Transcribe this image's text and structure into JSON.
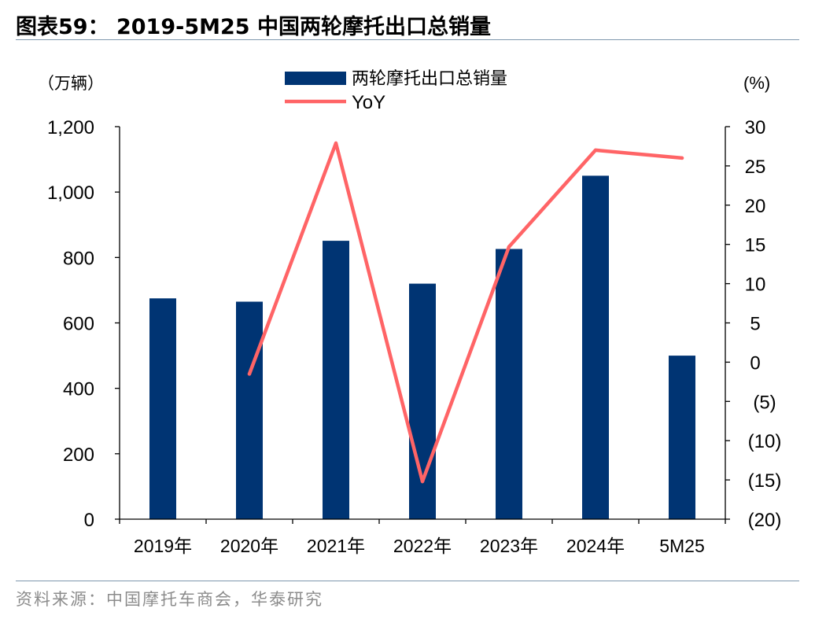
{
  "header": {
    "title": "图表59：  2019-5M25 中国两轮摩托出口总销量"
  },
  "footer": {
    "source": "资料来源：中国摩托车商会，华泰研究"
  },
  "colors": {
    "bar": "#003473",
    "line": "#ff6466",
    "rule": "#7f98ad",
    "source": "#8c8c8c"
  },
  "chart_data": {
    "type": "bar+line",
    "categories": [
      "2019年",
      "2020年",
      "2021年",
      "2022年",
      "2023年",
      "2024年",
      "5M25"
    ],
    "series": [
      {
        "name": "两轮摩托出口总销量",
        "type": "bar",
        "axis": "left",
        "values": [
          675,
          665,
          851,
          720,
          826,
          1050,
          500
        ]
      },
      {
        "name": "YoY",
        "type": "line",
        "axis": "right",
        "values": [
          null,
          -1.5,
          27.9,
          -15.2,
          14.7,
          27.0,
          26.0
        ]
      }
    ],
    "y_left": {
      "unit": "（万辆）",
      "min": 0,
      "max": 1200,
      "ticks": [
        0,
        200,
        400,
        600,
        800,
        1000,
        1200
      ],
      "tick_labels": [
        "0",
        "200",
        "400",
        "600",
        "800",
        "1,000",
        "1,200"
      ]
    },
    "y_right": {
      "unit": "(%)",
      "min": -20,
      "max": 30,
      "ticks": [
        -20,
        -15,
        -10,
        -5,
        0,
        5,
        10,
        15,
        20,
        25,
        30
      ],
      "tick_labels": [
        "(20)",
        "(15)",
        "(10)",
        "(5)",
        "0",
        "5",
        "10",
        "15",
        "20",
        "25",
        "30"
      ]
    },
    "legend": {
      "placement": "top-center"
    },
    "grid": false
  }
}
